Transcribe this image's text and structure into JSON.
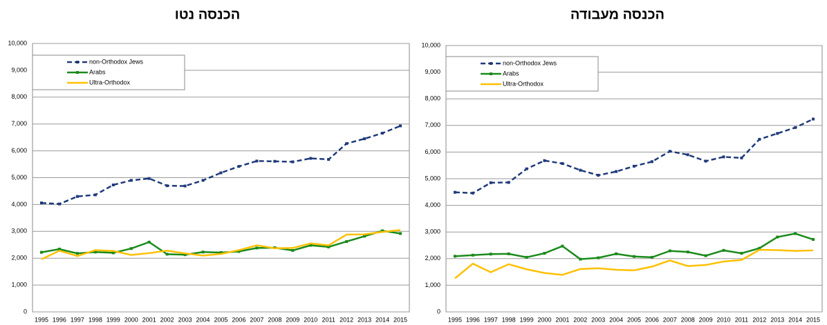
{
  "chart_data": [
    {
      "type": "line",
      "title": "הכנסה נטו",
      "categories": [
        "1995",
        "1996",
        "1997",
        "1998",
        "1999",
        "2000",
        "2001",
        "2002",
        "2003",
        "2004",
        "2005",
        "2006",
        "2007",
        "2008",
        "2009",
        "2010",
        "2011",
        "2012",
        "2013",
        "2014",
        "2015"
      ],
      "series": [
        {
          "name": "non-Orthodox Jews",
          "color": "#1f3a7a",
          "values": [
            4060,
            4020,
            4300,
            4360,
            4730,
            4900,
            4970,
            4700,
            4690,
            4900,
            5180,
            5420,
            5620,
            5610,
            5590,
            5720,
            5680,
            6270,
            6450,
            6660,
            6930
          ]
        },
        {
          "name": "Arabs",
          "color": "#1a8a1a",
          "values": [
            2220,
            2340,
            2180,
            2230,
            2200,
            2360,
            2600,
            2150,
            2130,
            2230,
            2210,
            2250,
            2380,
            2390,
            2290,
            2480,
            2420,
            2620,
            2820,
            3020,
            2920
          ]
        },
        {
          "name": "Ultra-Orthodox",
          "color": "#ffc000",
          "values": [
            1960,
            2280,
            2080,
            2300,
            2270,
            2120,
            2190,
            2280,
            2180,
            2100,
            2160,
            2300,
            2480,
            2370,
            2380,
            2550,
            2480,
            2880,
            2890,
            2980,
            3050
          ]
        }
      ],
      "ylim": [
        0,
        10000
      ],
      "yticks": [
        0,
        {
          "value": 1000,
          "label": "1,000"
        },
        {
          "value": 2000,
          "label": "2,000"
        },
        {
          "value": 3000,
          "label": "3,000"
        },
        {
          "value": 4000,
          "label": "4,000"
        },
        {
          "value": 5000,
          "label": "5,000"
        },
        {
          "value": 6000,
          "label": "6,000"
        },
        {
          "value": 7000,
          "label": "7,000"
        },
        {
          "value": 8000,
          "label": "8,000"
        },
        {
          "value": 9000,
          "label": "9,000"
        },
        {
          "value": 10000,
          "label": "10,000"
        }
      ],
      "grid": true,
      "legend": "upper left"
    },
    {
      "type": "line",
      "title": "הכנסה מעבודה",
      "categories": [
        "1995",
        "1996",
        "1997",
        "1998",
        "1999",
        "2000",
        "2001",
        "2002",
        "2003",
        "2004",
        "2005",
        "2006",
        "2007",
        "2008",
        "2009",
        "2010",
        "2011",
        "2012",
        "2013",
        "2014",
        "2015"
      ],
      "series": [
        {
          "name": "non-Orthodox Jews",
          "color": "#1f3a7a",
          "values": [
            4490,
            4460,
            4850,
            4860,
            5370,
            5680,
            5570,
            5320,
            5130,
            5270,
            5470,
            5640,
            6030,
            5900,
            5660,
            5820,
            5780,
            6480,
            6700,
            6920,
            7240
          ]
        },
        {
          "name": "Arabs",
          "color": "#1a8a1a",
          "values": [
            2090,
            2130,
            2170,
            2180,
            2050,
            2200,
            2470,
            1980,
            2030,
            2180,
            2080,
            2050,
            2290,
            2250,
            2110,
            2310,
            2200,
            2390,
            2810,
            2940,
            2720
          ]
        },
        {
          "name": "Ultra-Orthodox",
          "color": "#ffc000",
          "values": [
            1260,
            1810,
            1490,
            1790,
            1600,
            1460,
            1390,
            1610,
            1640,
            1580,
            1560,
            1700,
            1930,
            1720,
            1760,
            1890,
            1950,
            2330,
            2320,
            2290,
            2310
          ]
        }
      ],
      "ylim": [
        0,
        10000
      ],
      "yticks": [
        0,
        {
          "value": 1000,
          "label": "1,000"
        },
        {
          "value": 2000,
          "label": "2,000"
        },
        {
          "value": 3000,
          "label": "3,000"
        },
        {
          "value": 4000,
          "label": "4,000"
        },
        {
          "value": 5000,
          "label": "5,000"
        },
        {
          "value": 6000,
          "label": "6,000"
        },
        {
          "value": 7000,
          "label": "7,000"
        },
        {
          "value": 8000,
          "label": "8,000"
        },
        {
          "value": 9000,
          "label": "9,000"
        },
        {
          "value": 10000,
          "label": "10,000"
        }
      ],
      "grid": true,
      "legend": "upper left"
    }
  ]
}
